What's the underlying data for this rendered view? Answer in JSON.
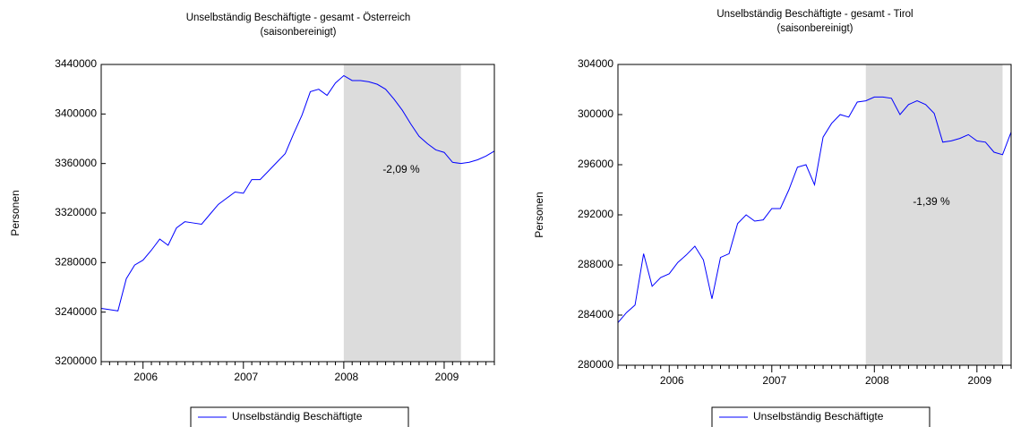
{
  "chart_data": [
    {
      "type": "line",
      "title": "Unselbständig Beschäftigte - gesamt - Österreich",
      "subtitle": "(saisonbereinigt)",
      "y_label": "Personen",
      "categories": [
        null,
        null,
        null,
        null,
        null,
        "2006",
        null,
        null,
        null,
        null,
        null,
        null,
        null,
        null,
        null,
        null,
        null,
        "2007",
        null,
        null,
        null,
        null,
        null,
        null,
        null,
        null,
        null,
        null,
        null,
        "2008",
        null,
        null,
        null,
        null,
        null,
        null,
        null,
        null,
        null,
        null,
        null,
        "2009",
        null,
        null,
        null,
        null,
        null,
        null
      ],
      "series": [
        {
          "name": "Unselbständig Beschäftigte",
          "color": "#0000ff",
          "values": [
            3243000,
            3242000,
            3241000,
            3267000,
            3278000,
            3282000,
            3290000,
            3299000,
            3294000,
            3308000,
            3313000,
            3312000,
            3311000,
            3319000,
            3327000,
            3332000,
            3337000,
            3336000,
            3347000,
            3347000,
            3354000,
            3361000,
            3368000,
            3384000,
            3399000,
            3418000,
            3420000,
            3415000,
            3425000,
            3431000,
            3427000,
            3427000,
            3426000,
            3424000,
            3420000,
            3412000,
            3403000,
            3392000,
            3382000,
            3376000,
            3371000,
            3369000,
            3361000,
            3360000,
            3361000,
            3363000,
            3366000,
            3370000
          ]
        }
      ],
      "ylim": [
        3200000,
        3440000
      ],
      "yticks": [
        3200000,
        3240000,
        3280000,
        3320000,
        3360000,
        3400000,
        3440000
      ],
      "shaded_range": [
        29,
        43
      ],
      "annotation": "-2,09 %"
    },
    {
      "type": "line",
      "title": "Unselbständig Beschäftigte - gesamt - Tirol",
      "subtitle": "(saisonbereinigt)",
      "y_label": "Personen",
      "categories": [
        null,
        null,
        null,
        null,
        null,
        null,
        "2006",
        null,
        null,
        null,
        null,
        null,
        null,
        null,
        null,
        null,
        null,
        null,
        "2007",
        null,
        null,
        null,
        null,
        null,
        null,
        null,
        null,
        null,
        null,
        null,
        "2008",
        null,
        null,
        null,
        null,
        null,
        null,
        null,
        null,
        null,
        null,
        null,
        "2009",
        null,
        null,
        null,
        null
      ],
      "series": [
        {
          "name": "Unselbständig Beschäftigte",
          "color": "#0000ff",
          "values": [
            283400,
            284200,
            284800,
            288900,
            286300,
            287000,
            287300,
            288200,
            288800,
            289500,
            288400,
            285300,
            288600,
            288900,
            291300,
            292000,
            291500,
            291600,
            292500,
            292500,
            294000,
            295800,
            296000,
            294400,
            298200,
            299300,
            300000,
            299800,
            301000,
            301100,
            301400,
            301400,
            301300,
            300000,
            300800,
            301100,
            300800,
            300100,
            297800,
            297900,
            298100,
            298400,
            297900,
            297800,
            297000,
            296800,
            298600
          ]
        }
      ],
      "ylim": [
        280000,
        304000
      ],
      "yticks": [
        280000,
        284000,
        288000,
        292000,
        296000,
        300000,
        304000
      ],
      "shaded_range": [
        29,
        45
      ],
      "annotation": "-1,39 %"
    }
  ]
}
